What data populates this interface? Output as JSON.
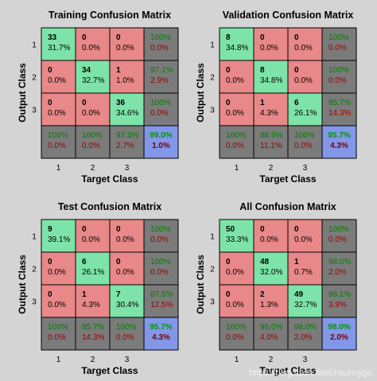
{
  "colors": {
    "background": "#d4d4d4",
    "correct_cell": "#7de3a8",
    "incorrect_cell": "#e88888",
    "summary_cell": "#7b7b7b",
    "overall_cell": "#8297e8",
    "pct_green": "#007f00",
    "pct_red": "#9c0000",
    "overall_green": "#009900",
    "overall_red": "#7a0000"
  },
  "watermark": "https://blog.csdn.net/chauncygu",
  "chart_data": [
    {
      "type": "heatmap",
      "title": "Training Confusion Matrix",
      "xlabel": "Target Class",
      "ylabel": "Output Class",
      "x_ticks": [
        "1",
        "2",
        "3"
      ],
      "y_ticks": [
        "1",
        "2",
        "3"
      ],
      "counts": [
        [
          33,
          0,
          0
        ],
        [
          0,
          34,
          1
        ],
        [
          0,
          0,
          36
        ]
      ],
      "cell_percents": [
        [
          "31.7%",
          "0.0%",
          "0.0%"
        ],
        [
          "0.0%",
          "32.7%",
          "1.0%"
        ],
        [
          "0.0%",
          "0.0%",
          "34.6%"
        ]
      ],
      "row_summary": [
        [
          "100%",
          "0.0%"
        ],
        [
          "97.1%",
          "2.9%"
        ],
        [
          "100%",
          "0.0%"
        ]
      ],
      "col_summary": [
        [
          "100%",
          "0.0%"
        ],
        [
          "100%",
          "0.0%"
        ],
        [
          "97.3%",
          "2.7%"
        ]
      ],
      "overall": [
        "99.0%",
        "1.0%"
      ]
    },
    {
      "type": "heatmap",
      "title": "Validation Confusion Matrix",
      "xlabel": "Target Class",
      "ylabel": "Output Class",
      "x_ticks": [
        "1",
        "2",
        "3"
      ],
      "y_ticks": [
        "1",
        "2",
        "3"
      ],
      "counts": [
        [
          8,
          0,
          0
        ],
        [
          0,
          8,
          0
        ],
        [
          0,
          1,
          6
        ]
      ],
      "cell_percents": [
        [
          "34.8%",
          "0.0%",
          "0.0%"
        ],
        [
          "0.0%",
          "34.8%",
          "0.0%"
        ],
        [
          "0.0%",
          "4.3%",
          "26.1%"
        ]
      ],
      "row_summary": [
        [
          "100%",
          "0.0%"
        ],
        [
          "100%",
          "0.0%"
        ],
        [
          "85.7%",
          "14.3%"
        ]
      ],
      "col_summary": [
        [
          "100%",
          "0.0%"
        ],
        [
          "88.9%",
          "11.1%"
        ],
        [
          "100%",
          "0.0%"
        ]
      ],
      "overall": [
        "95.7%",
        "4.3%"
      ]
    },
    {
      "type": "heatmap",
      "title": "Test Confusion Matrix",
      "xlabel": "Target Class",
      "ylabel": "Output Class",
      "x_ticks": [
        "1",
        "2",
        "3"
      ],
      "y_ticks": [
        "1",
        "2",
        "3"
      ],
      "counts": [
        [
          9,
          0,
          0
        ],
        [
          0,
          6,
          0
        ],
        [
          0,
          1,
          7
        ]
      ],
      "cell_percents": [
        [
          "39.1%",
          "0.0%",
          "0.0%"
        ],
        [
          "0.0%",
          "26.1%",
          "0.0%"
        ],
        [
          "0.0%",
          "4.3%",
          "30.4%"
        ]
      ],
      "row_summary": [
        [
          "100%",
          "0.0%"
        ],
        [
          "100%",
          "0.0%"
        ],
        [
          "87.5%",
          "12.5%"
        ]
      ],
      "col_summary": [
        [
          "100%",
          "0.0%"
        ],
        [
          "85.7%",
          "14.3%"
        ],
        [
          "100%",
          "0.0%"
        ]
      ],
      "overall": [
        "95.7%",
        "4.3%"
      ]
    },
    {
      "type": "heatmap",
      "title": "All Confusion Matrix",
      "xlabel": "Target Class",
      "ylabel": "Output Class",
      "x_ticks": [
        "1",
        "2",
        "3"
      ],
      "y_ticks": [
        "1",
        "2",
        "3"
      ],
      "counts": [
        [
          50,
          0,
          0
        ],
        [
          0,
          48,
          1
        ],
        [
          0,
          2,
          49
        ]
      ],
      "cell_percents": [
        [
          "33.3%",
          "0.0%",
          "0.0%"
        ],
        [
          "0.0%",
          "32.0%",
          "0.7%"
        ],
        [
          "0.0%",
          "1.3%",
          "32.7%"
        ]
      ],
      "row_summary": [
        [
          "100%",
          "0.0%"
        ],
        [
          "98.0%",
          "2.0%"
        ],
        [
          "96.1%",
          "3.9%"
        ]
      ],
      "col_summary": [
        [
          "100%",
          "0.0%"
        ],
        [
          "96.0%",
          "4.0%"
        ],
        [
          "98.0%",
          "2.0%"
        ]
      ],
      "overall": [
        "98.0%",
        "2.0%"
      ]
    }
  ]
}
